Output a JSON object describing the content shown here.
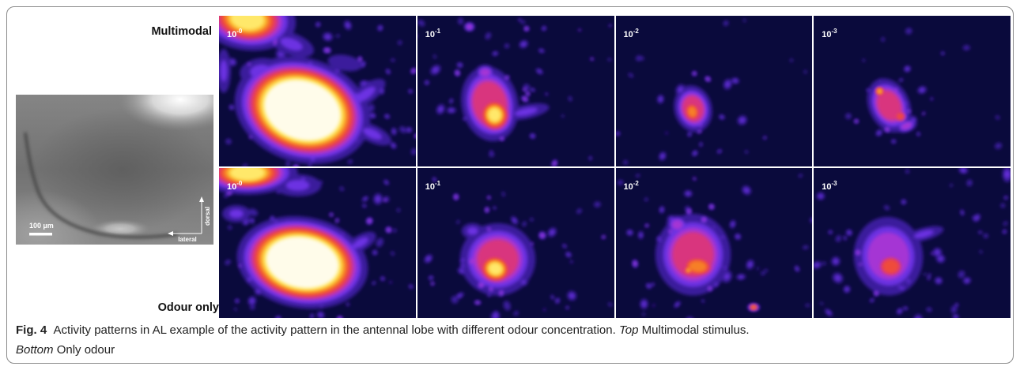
{
  "figure": {
    "rows": [
      {
        "label": "Multimodal",
        "panels": [
          {
            "base": "10",
            "exp": "-0"
          },
          {
            "base": "10",
            "exp": "-1"
          },
          {
            "base": "10",
            "exp": "-2"
          },
          {
            "base": "10",
            "exp": "-3"
          }
        ]
      },
      {
        "label": "Odour only",
        "panels": [
          {
            "base": "10",
            "exp": "-0"
          },
          {
            "base": "10",
            "exp": "-1"
          },
          {
            "base": "10",
            "exp": "-2"
          },
          {
            "base": "10",
            "exp": "-3"
          }
        ]
      }
    ],
    "reference_image": {
      "scale_bar_label": "100 µm",
      "dorsal_label": "dorsal",
      "lateral_label": "lateral"
    }
  },
  "caption": {
    "fig_label": "Fig. 4",
    "text": "Activity patterns in AL example of the activity pattern in the antennal lobe with different odour concentration.",
    "top_label": "Top",
    "top_text": "Multimodal stimulus.",
    "bottom_label": "Bottom",
    "bottom_text": "Only odour"
  },
  "colors": {
    "heatmap_background": "#0a0a3c",
    "heatmap_colormap": [
      "#3b1c9c",
      "#6c30e2",
      "#a534d4",
      "#d9367e",
      "#ef4b3a",
      "#f67f26",
      "#fbbd31",
      "#ffe86b",
      "#fffcea"
    ],
    "panel_divider": "#ffffff",
    "frame_border": "#8a8a8a",
    "overlay_text": "#ffffff"
  }
}
